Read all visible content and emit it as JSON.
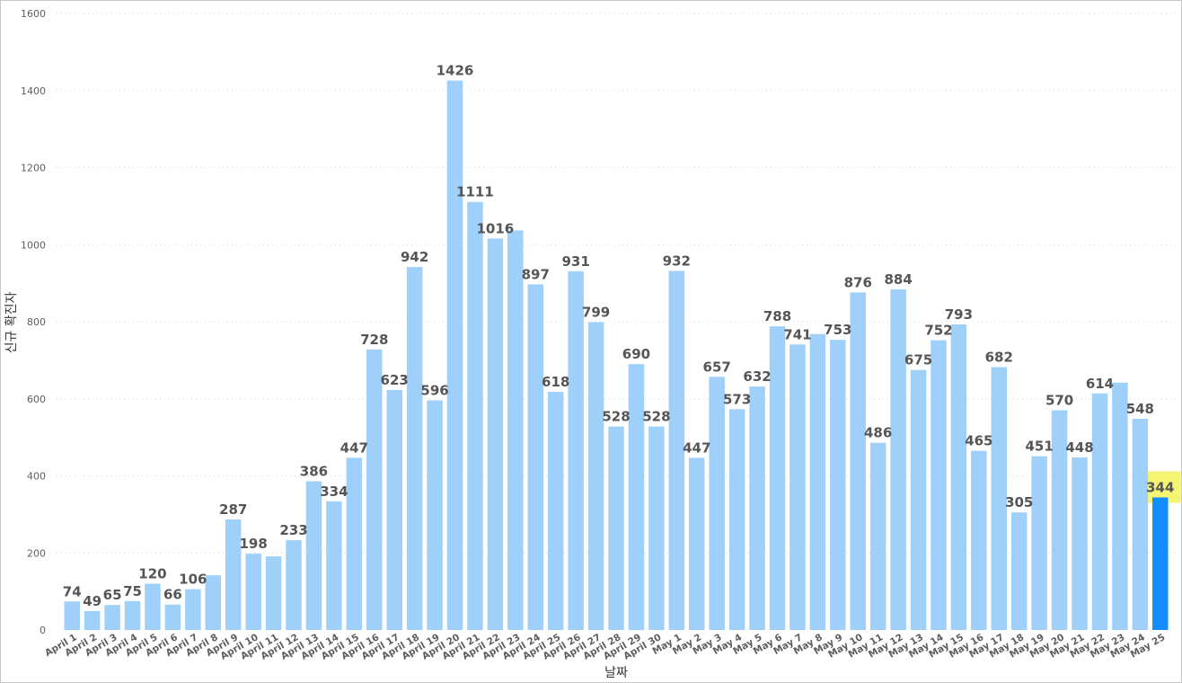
{
  "chart_data": {
    "type": "bar",
    "title": "",
    "xlabel": "날짜",
    "ylabel": "신규 확진자",
    "ylim": [
      0,
      1600
    ],
    "yticks": [
      0,
      200,
      400,
      600,
      800,
      1000,
      1200,
      1400,
      1600
    ],
    "grid": true,
    "legend": "none",
    "colors": {
      "bar": "#9fd0fa",
      "highlight_bar": "#118dff",
      "highlight_label_bg": "#f5f25a"
    },
    "highlight_index": 54,
    "categories": [
      "April 1",
      "April 2",
      "April 3",
      "April 4",
      "April 5",
      "April 6",
      "April 7",
      "April 8",
      "April 9",
      "April 10",
      "April 11",
      "April 12",
      "April 13",
      "April 14",
      "April 15",
      "April 16",
      "April 17",
      "April 18",
      "April 19",
      "April 20",
      "April 21",
      "April 22",
      "April 23",
      "April 24",
      "April 25",
      "April 26",
      "April 27",
      "April 28",
      "April 29",
      "April 30",
      "May 1",
      "May 2",
      "May 3",
      "May 4",
      "May 5",
      "May 6",
      "May 7",
      "May 8",
      "May 9",
      "May 10",
      "May 11",
      "May 12",
      "May 13",
      "May 14",
      "May 15",
      "May 16",
      "May 17",
      "May 18",
      "May 19",
      "May 20",
      "May 21",
      "May 22",
      "May 23",
      "May 24",
      "May 25"
    ],
    "values": [
      74,
      49,
      65,
      75,
      120,
      66,
      106,
      142,
      287,
      198,
      191,
      233,
      386,
      334,
      447,
      728,
      623,
      942,
      596,
      1426,
      1111,
      1016,
      1037,
      897,
      618,
      931,
      799,
      528,
      690,
      528,
      932,
      447,
      657,
      573,
      632,
      788,
      741,
      768,
      753,
      876,
      486,
      884,
      675,
      752,
      793,
      465,
      682,
      305,
      451,
      570,
      448,
      614,
      642,
      548,
      344
    ],
    "data_labels": [
      "74",
      "49",
      "65",
      "75",
      "120",
      "66",
      "106",
      "",
      "287",
      "198",
      "",
      "233",
      "386",
      "334",
      "447",
      "728",
      "623",
      "942",
      "596",
      "1426",
      "1111",
      "1016",
      "",
      "897",
      "618",
      "931",
      "799",
      "528",
      "690",
      "528",
      "932",
      "447",
      "657",
      "573",
      "632",
      "788",
      "741",
      "",
      "753",
      "876",
      "486",
      "884",
      "675",
      "752",
      "793",
      "465",
      "682",
      "305",
      "451",
      "570",
      "448",
      "614",
      "",
      "548",
      "344"
    ]
  }
}
